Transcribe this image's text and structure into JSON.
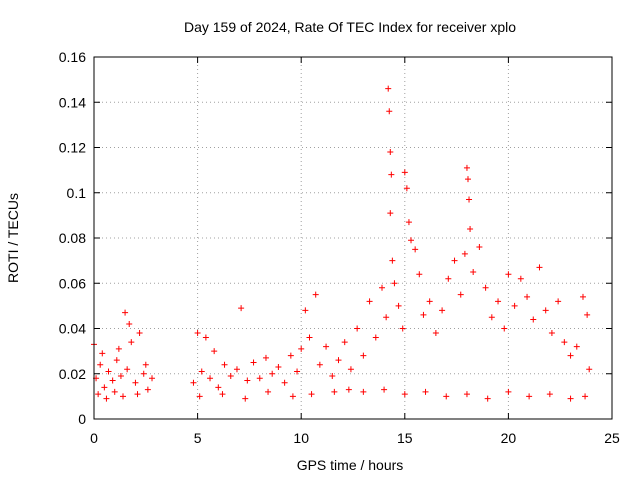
{
  "chart_data": {
    "type": "scatter",
    "title": "Day 159 of 2024, Rate Of TEC Index for receiver xplo",
    "xlabel": "GPS time / hours",
    "ylabel": "ROTI / TECUs",
    "xlim": [
      0,
      25
    ],
    "ylim": [
      0,
      0.16
    ],
    "xticks": [
      0,
      5,
      10,
      15,
      20,
      25
    ],
    "xtick_labels": [
      "0",
      "5",
      "10",
      "15",
      "20",
      "25"
    ],
    "yticks": [
      0,
      0.02,
      0.04,
      0.06,
      0.08,
      0.1,
      0.12,
      0.14,
      0.16
    ],
    "ytick_labels": [
      "0",
      "0.02",
      "0.04",
      "0.06",
      "0.08",
      "0.1",
      "0.12",
      "0.14",
      "0.16"
    ],
    "grid": true,
    "marker": "+",
    "color": "#ff0000",
    "series": [
      {
        "name": "ROTI",
        "points": [
          [
            0.1,
            0.018
          ],
          [
            0.3,
            0.024
          ],
          [
            0.5,
            0.014
          ],
          [
            0.7,
            0.021
          ],
          [
            0.9,
            0.017
          ],
          [
            1.1,
            0.026
          ],
          [
            1.3,
            0.019
          ],
          [
            1.5,
            0.047
          ],
          [
            1.6,
            0.022
          ],
          [
            1.8,
            0.034
          ],
          [
            2.0,
            0.016
          ],
          [
            2.2,
            0.038
          ],
          [
            2.4,
            0.02
          ],
          [
            2.6,
            0.013
          ],
          [
            2.8,
            0.018
          ],
          [
            0.2,
            0.011
          ],
          [
            0.6,
            0.009
          ],
          [
            1.0,
            0.012
          ],
          [
            1.4,
            0.01
          ],
          [
            2.1,
            0.011
          ],
          [
            0.4,
            0.029
          ],
          [
            1.2,
            0.031
          ],
          [
            1.7,
            0.042
          ],
          [
            2.5,
            0.024
          ],
          [
            0.0,
            0.033
          ],
          [
            4.8,
            0.016
          ],
          [
            5.0,
            0.038
          ],
          [
            5.2,
            0.021
          ],
          [
            5.4,
            0.036
          ],
          [
            5.6,
            0.018
          ],
          [
            5.8,
            0.03
          ],
          [
            6.0,
            0.014
          ],
          [
            6.3,
            0.024
          ],
          [
            6.6,
            0.019
          ],
          [
            6.9,
            0.022
          ],
          [
            7.1,
            0.049
          ],
          [
            7.4,
            0.017
          ],
          [
            7.7,
            0.025
          ],
          [
            8.0,
            0.018
          ],
          [
            8.3,
            0.027
          ],
          [
            8.6,
            0.02
          ],
          [
            8.9,
            0.023
          ],
          [
            9.2,
            0.016
          ],
          [
            9.5,
            0.028
          ],
          [
            9.8,
            0.021
          ],
          [
            10.0,
            0.031
          ],
          [
            10.2,
            0.048
          ],
          [
            10.4,
            0.036
          ],
          [
            10.7,
            0.055
          ],
          [
            10.9,
            0.024
          ],
          [
            11.2,
            0.032
          ],
          [
            11.5,
            0.019
          ],
          [
            11.8,
            0.026
          ],
          [
            12.1,
            0.034
          ],
          [
            12.4,
            0.022
          ],
          [
            5.1,
            0.01
          ],
          [
            6.2,
            0.011
          ],
          [
            7.3,
            0.009
          ],
          [
            8.4,
            0.012
          ],
          [
            9.6,
            0.01
          ],
          [
            10.5,
            0.011
          ],
          [
            11.6,
            0.012
          ],
          [
            12.3,
            0.013
          ],
          [
            12.7,
            0.04
          ],
          [
            13.0,
            0.028
          ],
          [
            13.3,
            0.052
          ],
          [
            13.6,
            0.036
          ],
          [
            13.9,
            0.058
          ],
          [
            14.1,
            0.045
          ],
          [
            14.2,
            0.146
          ],
          [
            14.25,
            0.136
          ],
          [
            14.3,
            0.118
          ],
          [
            14.35,
            0.108
          ],
          [
            14.3,
            0.091
          ],
          [
            14.4,
            0.07
          ],
          [
            14.5,
            0.06
          ],
          [
            14.7,
            0.05
          ],
          [
            14.9,
            0.04
          ],
          [
            15.0,
            0.109
          ],
          [
            15.1,
            0.102
          ],
          [
            15.2,
            0.087
          ],
          [
            15.3,
            0.079
          ],
          [
            15.5,
            0.075
          ],
          [
            15.7,
            0.064
          ],
          [
            15.9,
            0.046
          ],
          [
            16.2,
            0.052
          ],
          [
            16.5,
            0.038
          ],
          [
            16.8,
            0.048
          ],
          [
            17.1,
            0.062
          ],
          [
            17.4,
            0.07
          ],
          [
            17.7,
            0.055
          ],
          [
            17.9,
            0.073
          ],
          [
            18.0,
            0.111
          ],
          [
            18.05,
            0.106
          ],
          [
            18.1,
            0.097
          ],
          [
            18.15,
            0.084
          ],
          [
            18.3,
            0.065
          ],
          [
            18.6,
            0.076
          ],
          [
            18.9,
            0.058
          ],
          [
            19.2,
            0.045
          ],
          [
            19.5,
            0.052
          ],
          [
            19.8,
            0.04
          ],
          [
            20.0,
            0.064
          ],
          [
            20.3,
            0.05
          ],
          [
            20.6,
            0.062
          ],
          [
            20.9,
            0.054
          ],
          [
            21.2,
            0.044
          ],
          [
            21.5,
            0.067
          ],
          [
            21.8,
            0.048
          ],
          [
            22.1,
            0.038
          ],
          [
            22.4,
            0.052
          ],
          [
            22.7,
            0.034
          ],
          [
            23.0,
            0.028
          ],
          [
            23.3,
            0.032
          ],
          [
            23.6,
            0.054
          ],
          [
            23.8,
            0.046
          ],
          [
            23.9,
            0.022
          ],
          [
            13.0,
            0.012
          ],
          [
            14.0,
            0.013
          ],
          [
            15.0,
            0.011
          ],
          [
            16.0,
            0.012
          ],
          [
            17.0,
            0.01
          ],
          [
            18.0,
            0.011
          ],
          [
            19.0,
            0.009
          ],
          [
            20.0,
            0.012
          ],
          [
            21.0,
            0.01
          ],
          [
            22.0,
            0.011
          ],
          [
            23.0,
            0.009
          ],
          [
            23.7,
            0.01
          ]
        ]
      }
    ]
  }
}
